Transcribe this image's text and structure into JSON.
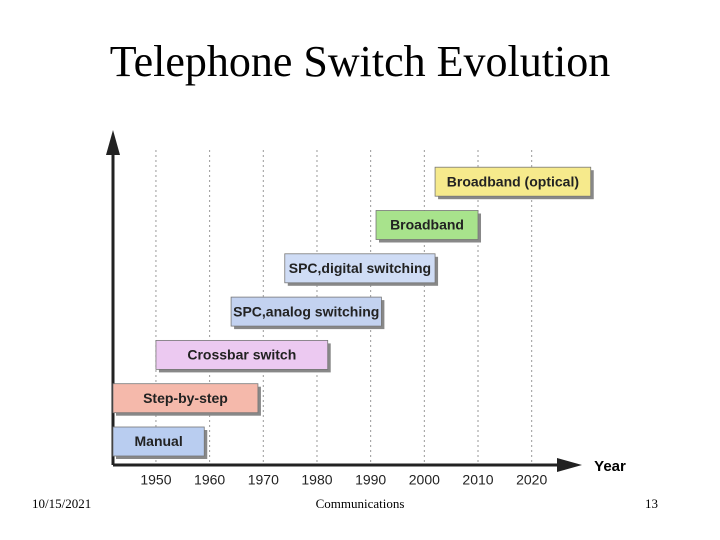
{
  "chart_data": {
    "type": "timeline",
    "title": "Telephone Switch Evolution",
    "x_label": "Year",
    "xlim": [
      1942,
      2029
    ],
    "xticks": [
      1950,
      1960,
      1970,
      1980,
      1990,
      2000,
      2010,
      2020
    ],
    "grid": true,
    "tasks": [
      {
        "name": "Manual",
        "start": 1942,
        "end": 1959,
        "color": "#b9cdf0"
      },
      {
        "name": "Step-by-step",
        "start": 1942,
        "end": 1969,
        "color": "#f5b9ab"
      },
      {
        "name": "Crossbar switch",
        "start": 1950,
        "end": 1982,
        "color": "#ecc9f1"
      },
      {
        "name": "SPC,analog switching",
        "start": 1964,
        "end": 1992,
        "color": "#c3d2f0"
      },
      {
        "name": "SPC,digital switching",
        "start": 1974,
        "end": 2002,
        "color": "#cfdcf5"
      },
      {
        "name": "Broadband",
        "start": 1991,
        "end": 2010,
        "color": "#a8e38c"
      },
      {
        "name": "Broadband (optical)",
        "start": 2002,
        "end": 2031,
        "color": "#f6ea8c"
      }
    ]
  },
  "footer": {
    "date": "10/15/2021",
    "center": "Communications",
    "page": "13"
  }
}
